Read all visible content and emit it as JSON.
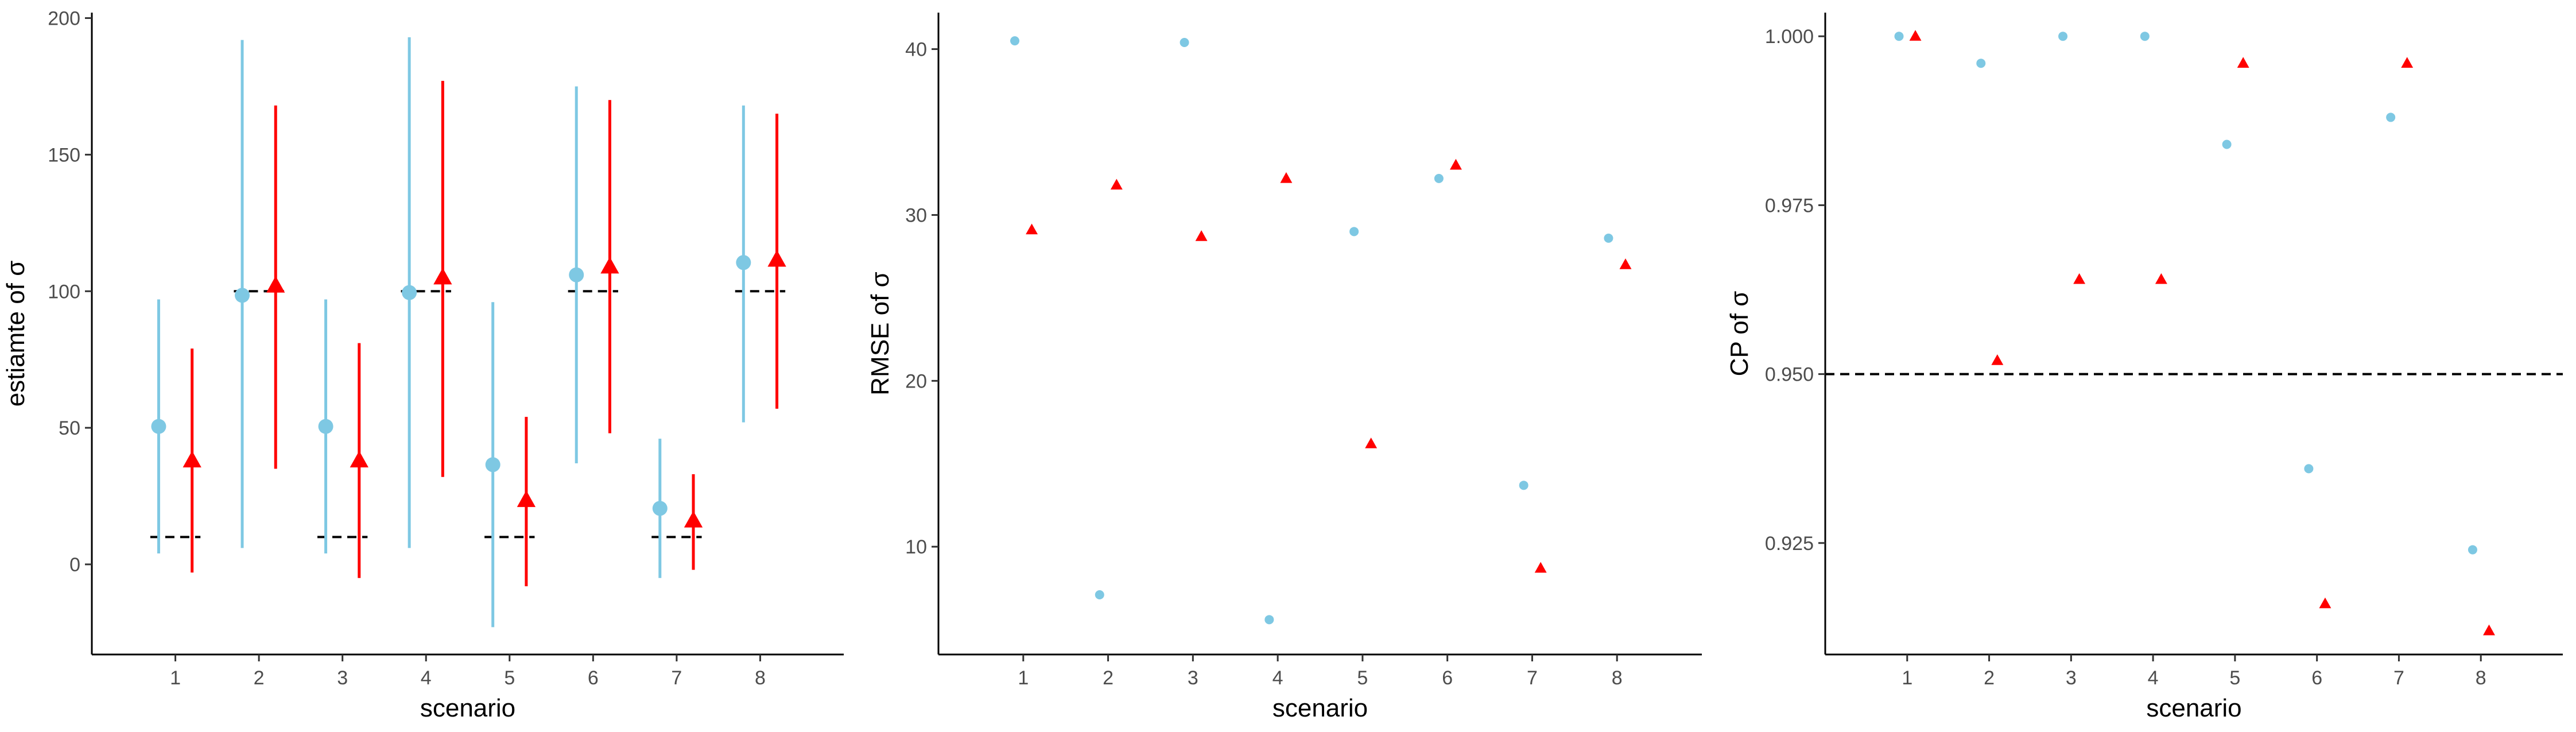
{
  "colors": {
    "m1": "#7ec8e3",
    "m2": "#ff0000",
    "ref": "#000000"
  },
  "chart_data": [
    {
      "type": "scatter",
      "title": "",
      "xlabel": "scenario",
      "ylabel": "estiamte of σ",
      "categories": [
        "1",
        "2",
        "3",
        "4",
        "5",
        "6",
        "7",
        "8"
      ],
      "ylim": [
        -33,
        202
      ],
      "yticks": [
        0,
        50,
        100,
        150,
        200
      ],
      "series": [
        {
          "marker": "circle",
          "color": "#7ec8e3",
          "values": [
            50.5,
            98.5,
            50.5,
            99.5,
            36.5,
            106,
            20.5,
            110.5
          ],
          "lower": [
            4,
            6,
            4,
            6,
            -23,
            37,
            -5,
            52
          ],
          "upper": [
            97,
            192,
            97,
            193,
            96,
            175,
            46,
            168
          ]
        },
        {
          "marker": "triangle",
          "color": "#ff0000",
          "values": [
            38,
            102,
            38,
            105,
            23.5,
            109,
            16,
            111.5
          ],
          "lower": [
            -3,
            35,
            -5,
            32,
            -8,
            48,
            -2,
            57
          ],
          "upper": [
            79,
            168,
            81,
            177,
            54,
            170,
            33,
            165
          ]
        }
      ],
      "true_values": [
        10,
        100,
        10,
        100,
        10,
        100,
        10,
        100
      ]
    },
    {
      "type": "scatter",
      "title": "",
      "xlabel": "scenario",
      "ylabel": "RMSE of σ",
      "categories": [
        "1",
        "2",
        "3",
        "4",
        "5",
        "6",
        "7",
        "8"
      ],
      "ylim": [
        3.5,
        42.2
      ],
      "yticks": [
        10,
        20,
        30,
        40
      ],
      "series": [
        {
          "marker": "circle",
          "color": "#7ec8e3",
          "values": [
            40.5,
            7.1,
            40.4,
            5.6,
            29.0,
            32.2,
            13.7,
            28.6
          ]
        },
        {
          "marker": "triangle",
          "color": "#ff0000",
          "values": [
            29.1,
            31.8,
            28.7,
            32.2,
            16.2,
            33.0,
            8.7,
            27.0
          ]
        }
      ]
    },
    {
      "type": "scatter",
      "title": "",
      "xlabel": "scenario",
      "ylabel": "CP of σ",
      "categories": [
        "1",
        "2",
        "3",
        "4",
        "5",
        "6",
        "7",
        "8"
      ],
      "ylim": [
        0.9085,
        1.0035
      ],
      "yticks": [
        0.925,
        0.95,
        0.975,
        1.0
      ],
      "ytick_labels": [
        "0.925",
        "0.950",
        "0.975",
        "1.000"
      ],
      "series": [
        {
          "marker": "circle",
          "color": "#7ec8e3",
          "values": [
            1.0,
            0.996,
            1.0,
            1.0,
            0.984,
            0.936,
            0.988,
            0.924
          ]
        },
        {
          "marker": "triangle",
          "color": "#ff0000",
          "values": [
            1.0,
            0.952,
            0.964,
            0.964,
            0.996,
            0.916,
            0.996,
            0.912
          ]
        }
      ],
      "hline": 0.95
    }
  ]
}
